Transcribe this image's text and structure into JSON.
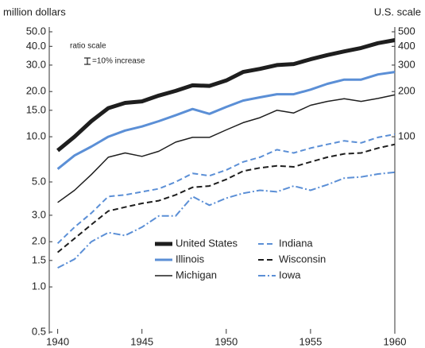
{
  "chart_data": {
    "type": "line",
    "y_label": "million dollars",
    "y2_label": "U.S. scale",
    "annotations": [
      "ratio scale",
      "=10% increase"
    ],
    "x": [
      1940,
      1941,
      1942,
      1943,
      1944,
      1945,
      1946,
      1947,
      1948,
      1949,
      1950,
      1951,
      1952,
      1953,
      1954,
      1955,
      1956,
      1957,
      1958,
      1959,
      1960
    ],
    "xlim": [
      1939.5,
      1960
    ],
    "xticks": [
      1940,
      1945,
      1950,
      1955,
      1960
    ],
    "ylim": [
      0.5,
      50
    ],
    "yticks": [
      {
        "value": 50,
        "label": "50.0"
      },
      {
        "value": 40,
        "label": "40.0"
      },
      {
        "value": 30,
        "label": "30.0"
      },
      {
        "value": 20,
        "label": "20.0"
      },
      {
        "value": 15,
        "label": "15.0"
      },
      {
        "value": 10,
        "label": "10.0"
      },
      {
        "value": 5,
        "label": "5.0"
      },
      {
        "value": 3,
        "label": "3.0"
      },
      {
        "value": 2,
        "label": "2.0"
      },
      1.5,
      {
        "value": 1,
        "label": "1.0"
      },
      0.5
    ],
    "y2lim": [
      5,
      500
    ],
    "y2ticks": [
      500,
      400,
      300,
      200,
      100
    ],
    "log_scale": true,
    "grid": false,
    "series": [
      {
        "name": "United States",
        "color": "#1e1e1e",
        "width": 5,
        "style": "solid",
        "axis": "y2",
        "values": [
          81,
          100,
          127,
          155,
          168,
          172,
          188,
          202,
          220,
          218,
          237,
          270,
          283,
          300,
          305,
          328,
          350,
          370,
          390,
          420,
          440
        ]
      },
      {
        "name": "Indiana",
        "color": "#5b8fd6",
        "width": 2,
        "style": "dashed",
        "values": [
          1.95,
          2.5,
          3.1,
          4.0,
          4.1,
          4.3,
          4.5,
          5.0,
          5.7,
          5.5,
          6.0,
          6.8,
          7.3,
          8.2,
          7.8,
          8.4,
          8.9,
          9.4,
          9.1,
          9.9,
          10.4
        ]
      },
      {
        "name": "Illinois",
        "color": "#5b8fd6",
        "width": 3,
        "style": "solid",
        "values": [
          6.1,
          7.5,
          8.6,
          10,
          11,
          11.7,
          12.7,
          13.9,
          15.3,
          14.2,
          15.8,
          17.4,
          18.3,
          19.2,
          19.2,
          20.6,
          22.5,
          24,
          24,
          26,
          27
        ]
      },
      {
        "name": "Wisconsin",
        "color": "#1e1e1e",
        "width": 2,
        "style": "dashed",
        "values": [
          1.7,
          2.1,
          2.6,
          3.2,
          3.4,
          3.6,
          3.75,
          4.1,
          4.6,
          4.7,
          5.2,
          5.9,
          6.2,
          6.4,
          6.3,
          6.8,
          7.3,
          7.7,
          7.8,
          8.4,
          8.9
        ]
      },
      {
        "name": "Michigan",
        "color": "#1e1e1e",
        "width": 1.5,
        "style": "solid",
        "values": [
          3.65,
          4.4,
          5.6,
          7.3,
          7.8,
          7.4,
          8.0,
          9.2,
          9.9,
          9.9,
          11.1,
          12.4,
          13.4,
          15,
          14.4,
          16.2,
          17.2,
          17.9,
          17.2,
          18,
          19
        ]
      },
      {
        "name": "Iowa",
        "color": "#5b8fd6",
        "width": 2,
        "style": "dashdot",
        "values": [
          1.34,
          1.53,
          2.0,
          2.3,
          2.2,
          2.5,
          2.97,
          2.97,
          4.0,
          3.5,
          3.9,
          4.2,
          4.4,
          4.3,
          4.7,
          4.4,
          4.8,
          5.3,
          5.4,
          5.65,
          5.8
        ]
      }
    ]
  }
}
